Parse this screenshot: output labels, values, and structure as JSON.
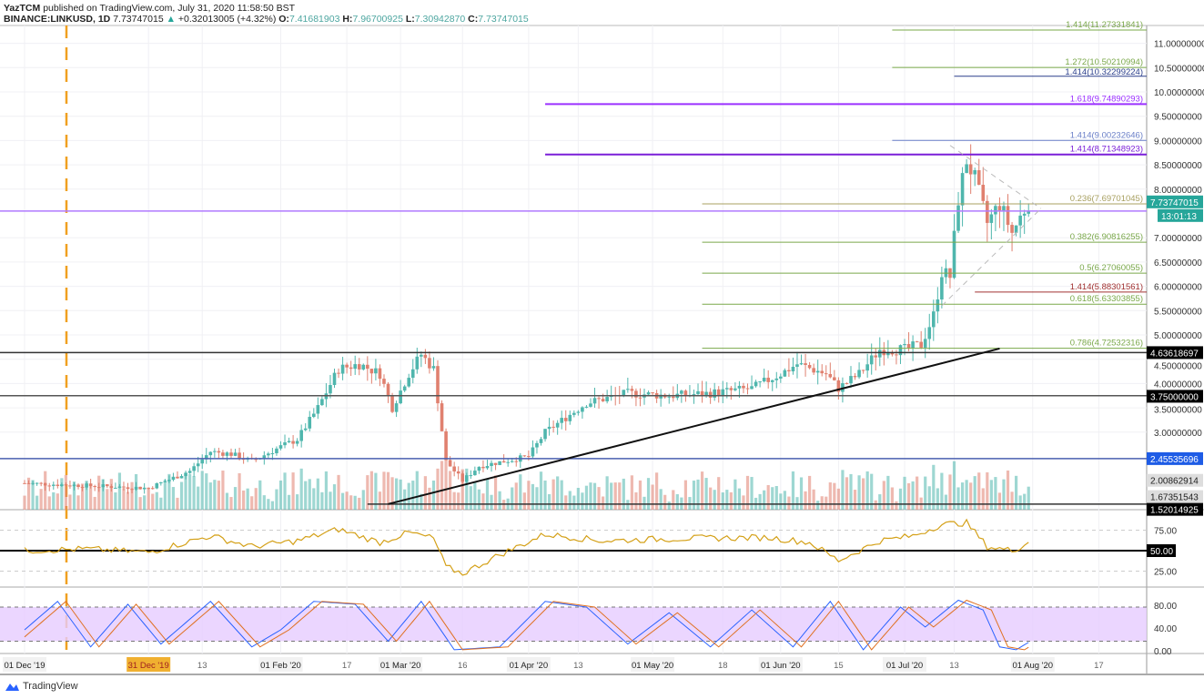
{
  "header": {
    "publisher": "YazTCM",
    "published_text": "published on TradingView.com, July 31, 2020 11:58:50 BST",
    "symbol": "BINANCE:LINKUSD, 1D",
    "last": "7.73747015",
    "change": "+0.32013005 (+4.32%)",
    "o_label": "O:",
    "o": "7.41681903",
    "h_label": "H:",
    "h": "7.96700925",
    "l_label": "L:",
    "l": "7.30942870",
    "c_label": "C:",
    "c": "7.73747015"
  },
  "footer": {
    "brand": "TradingView"
  },
  "colors": {
    "up": "#4fb6ad",
    "down": "#e0806f",
    "purple": "#9b30ff",
    "fib": "#7aa84a",
    "navy": "#2b3f8c"
  },
  "chart_data": {
    "type": "candlestick",
    "title": "BINANCE:LINKUSD, 1D",
    "start_date": "2019-12-01",
    "days": 244,
    "price_axis": {
      "ticks": [
        "11.00000000",
        "10.50000000",
        "10.00000000",
        "9.50000000",
        "9.00000000",
        "8.50000000",
        "8.00000000",
        "7.00000000",
        "6.50000000",
        "6.00000000",
        "5.50000000",
        "5.00000000",
        "4.50000000",
        "4.00000000",
        "3.50000000",
        "3.00000000"
      ],
      "ylim": [
        1.45,
        11.4
      ]
    },
    "close_anchors": [
      [
        0,
        1.95
      ],
      [
        30,
        1.85
      ],
      [
        40,
        2.2
      ],
      [
        45,
        2.6
      ],
      [
        50,
        2.55
      ],
      [
        55,
        2.4
      ],
      [
        62,
        2.7
      ],
      [
        66,
        2.85
      ],
      [
        71,
        3.5
      ],
      [
        76,
        4.3
      ],
      [
        81,
        4.4
      ],
      [
        86,
        4.2
      ],
      [
        89,
        3.5
      ],
      [
        93,
        4.2
      ],
      [
        96,
        4.6
      ],
      [
        99,
        4.3
      ],
      [
        102,
        2.4
      ],
      [
        106,
        2.0
      ],
      [
        110,
        2.3
      ],
      [
        122,
        2.5
      ],
      [
        126,
        3.0
      ],
      [
        131,
        3.3
      ],
      [
        136,
        3.6
      ],
      [
        146,
        3.8
      ],
      [
        156,
        3.75
      ],
      [
        166,
        3.8
      ],
      [
        176,
        3.9
      ],
      [
        183,
        4.2
      ],
      [
        187,
        4.4
      ],
      [
        194,
        4.2
      ],
      [
        197,
        3.9
      ],
      [
        202,
        4.2
      ],
      [
        207,
        4.7
      ],
      [
        213,
        4.7
      ],
      [
        217,
        4.8
      ],
      [
        220,
        5.4
      ],
      [
        222,
        6.3
      ],
      [
        224,
        6.2
      ],
      [
        226,
        7.8
      ],
      [
        228,
        8.6
      ],
      [
        230,
        8.2
      ],
      [
        233,
        7.3
      ],
      [
        236,
        7.7
      ],
      [
        239,
        7.1
      ],
      [
        243,
        7.74
      ]
    ],
    "levels": [
      {
        "price": 11.27331841,
        "label": "1.414(11.27331841)",
        "color": "#7aa84a",
        "from_day": 210
      },
      {
        "price": 10.50210994,
        "label": "1.272(10.50210994)",
        "color": "#7aa84a",
        "from_day": 210
      },
      {
        "price": 10.32299224,
        "label": "1.414(10.32299224)",
        "color": "#2b3f8c",
        "from_day": 225
      },
      {
        "price": 9.74890293,
        "label": "1.618(9.74890293)",
        "color": "#9b30ff",
        "from_day": 126
      },
      {
        "price": 9.00232646,
        "label": "1.414(9.00232646)",
        "color": "#6a7fc8",
        "from_day": 210
      },
      {
        "price": 8.71348923,
        "label": "1.414(8.71348923)",
        "color": "#7a1fd8",
        "from_day": 126
      },
      {
        "price": 7.69701045,
        "label": "0.236(7.69701045)",
        "color": "#a8a060",
        "from_day": 164
      },
      {
        "price": 6.90816255,
        "label": "0.382(6.90816255)",
        "color": "#7aa84a",
        "from_day": 164
      },
      {
        "price": 6.27060055,
        "label": "0.5(6.27060055)",
        "color": "#7aa84a",
        "from_day": 164
      },
      {
        "price": 5.88301561,
        "label": "1.414(5.88301561)",
        "color": "#a03030",
        "from_day": 230
      },
      {
        "price": 5.63303855,
        "label": "0.618(5.63303855)",
        "color": "#7aa84a",
        "from_day": 164
      },
      {
        "price": 4.72532316,
        "label": "0.786(4.72532316)",
        "color": "#7aa84a",
        "from_day": 164
      }
    ],
    "price_tags": [
      {
        "price": 7.73747015,
        "label": "7.73747015",
        "bg": "#26a69a",
        "fg": "#fff"
      },
      {
        "price": 4.63618697,
        "label": "4.63618697",
        "bg": "#000",
        "fg": "#fff"
      },
      {
        "price": 3.75,
        "label": "3.75000000",
        "bg": "#000",
        "fg": "#fff"
      },
      {
        "price": 2.45535696,
        "label": "2.45535696",
        "bg": "#1e5ce6",
        "fg": "#fff"
      },
      {
        "price": 2.00862914,
        "label": "2.00862914",
        "bg": "#ddd",
        "fg": "#222"
      },
      {
        "price": 1.67351543,
        "label": "1.67351543",
        "bg": "#ddd",
        "fg": "#222"
      },
      {
        "price": 1.52014925,
        "label": "1.52014925",
        "bg": "#000",
        "fg": "#fff"
      }
    ],
    "countdown": "13:01:13",
    "hlines": [
      {
        "price": 7.55,
        "color": "#b07aff"
      },
      {
        "price": 4.63618697,
        "color": "#333"
      },
      {
        "price": 3.75,
        "color": "#555"
      },
      {
        "price": 2.45535696,
        "color": "#4a5fb0"
      },
      {
        "price": 1.52014925,
        "color": "#333"
      }
    ],
    "trendline": [
      [
        88,
        1.52
      ],
      [
        236,
        4.72
      ]
    ],
    "rsi": {
      "ticks": [
        "75.00",
        "50.00",
        "25.00"
      ],
      "level_label": "50.00",
      "anchors": [
        [
          0,
          50
        ],
        [
          15,
          52
        ],
        [
          30,
          48
        ],
        [
          45,
          68
        ],
        [
          55,
          55
        ],
        [
          66,
          62
        ],
        [
          76,
          76
        ],
        [
          86,
          60
        ],
        [
          93,
          72
        ],
        [
          99,
          65
        ],
        [
          102,
          30
        ],
        [
          106,
          22
        ],
        [
          115,
          45
        ],
        [
          126,
          70
        ],
        [
          140,
          62
        ],
        [
          160,
          65
        ],
        [
          180,
          66
        ],
        [
          190,
          60
        ],
        [
          197,
          38
        ],
        [
          207,
          62
        ],
        [
          215,
          68
        ],
        [
          222,
          82
        ],
        [
          228,
          84
        ],
        [
          233,
          55
        ],
        [
          239,
          50
        ],
        [
          243,
          60
        ]
      ]
    },
    "stoch": {
      "ticks": [
        "80.00",
        "40.00",
        "0.00"
      ],
      "k": [
        [
          0,
          40
        ],
        [
          8,
          90
        ],
        [
          16,
          10
        ],
        [
          25,
          85
        ],
        [
          33,
          15
        ],
        [
          45,
          90
        ],
        [
          55,
          10
        ],
        [
          62,
          40
        ],
        [
          70,
          90
        ],
        [
          80,
          85
        ],
        [
          88,
          20
        ],
        [
          96,
          90
        ],
        [
          104,
          5
        ],
        [
          115,
          10
        ],
        [
          126,
          90
        ],
        [
          136,
          80
        ],
        [
          146,
          15
        ],
        [
          156,
          70
        ],
        [
          166,
          10
        ],
        [
          176,
          75
        ],
        [
          186,
          10
        ],
        [
          195,
          90
        ],
        [
          203,
          5
        ],
        [
          212,
          80
        ],
        [
          218,
          45
        ],
        [
          226,
          92
        ],
        [
          232,
          75
        ],
        [
          236,
          10
        ],
        [
          240,
          5
        ],
        [
          243,
          18
        ]
      ]
    },
    "time_axis": [
      "01 Dec '19",
      "31 Dec '19",
      "13",
      "01 Feb '20",
      "17",
      "01 Mar '20",
      "16",
      "01 Apr '20",
      "13",
      "01 May '20",
      "18",
      "01 Jun '20",
      "15",
      "01 Jul '20",
      "13",
      "01 Aug '20",
      "17"
    ],
    "time_axis_days": [
      0,
      30,
      43,
      62,
      78,
      91,
      106,
      122,
      134,
      152,
      169,
      183,
      197,
      213,
      225,
      244,
      260
    ]
  }
}
